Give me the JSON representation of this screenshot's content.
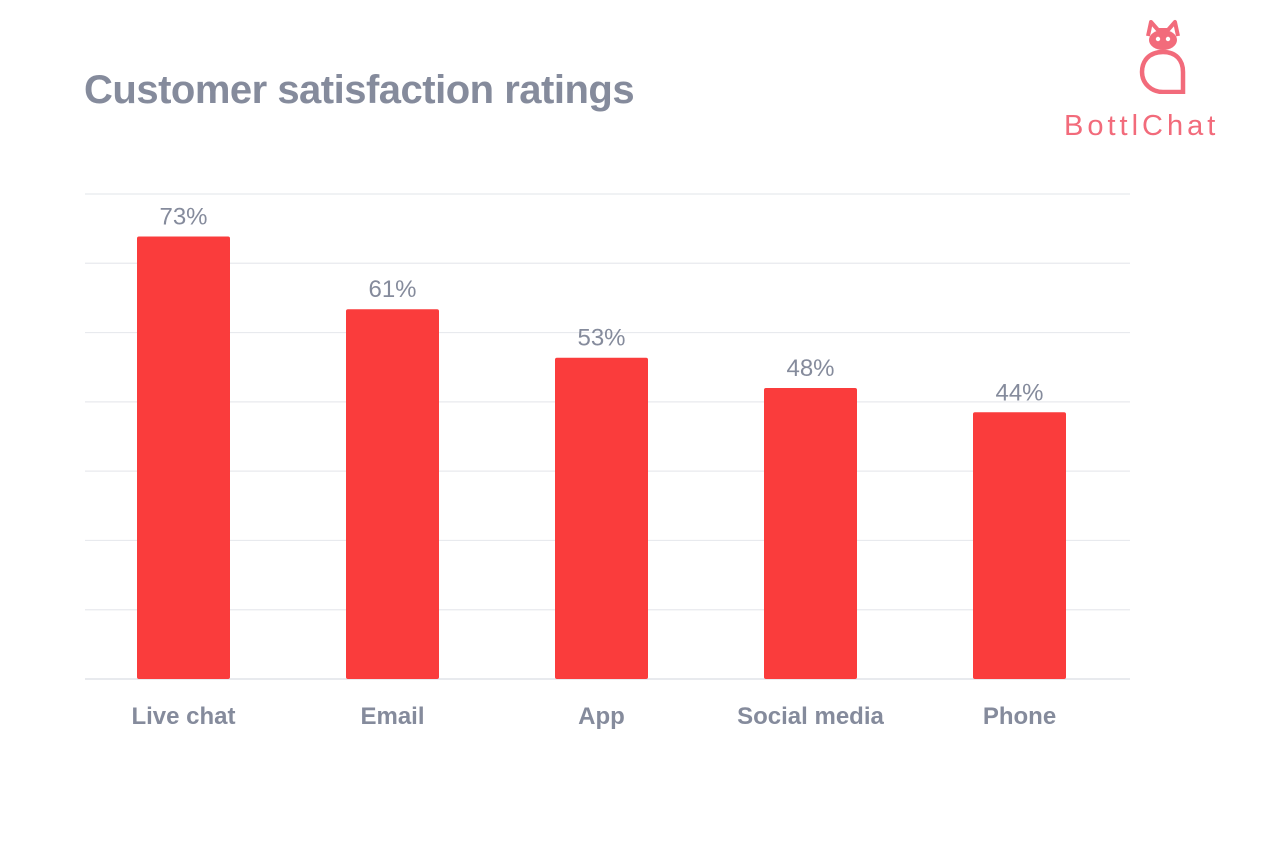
{
  "title": "Customer satisfaction ratings",
  "logo": {
    "text": "BottlChat",
    "color": "#f26b7b"
  },
  "chart_data": {
    "type": "bar",
    "categories": [
      "Live chat",
      "Email",
      "App",
      "Social media",
      "Phone"
    ],
    "values": [
      73,
      61,
      53,
      48,
      44
    ],
    "value_labels": [
      "73%",
      "61%",
      "53%",
      "48%",
      "44%"
    ],
    "ylim": [
      0,
      80
    ],
    "grid": true,
    "bar_color": "#fa3c3c",
    "grid_color": "#e8eaee",
    "text_color": "#858b9c"
  }
}
